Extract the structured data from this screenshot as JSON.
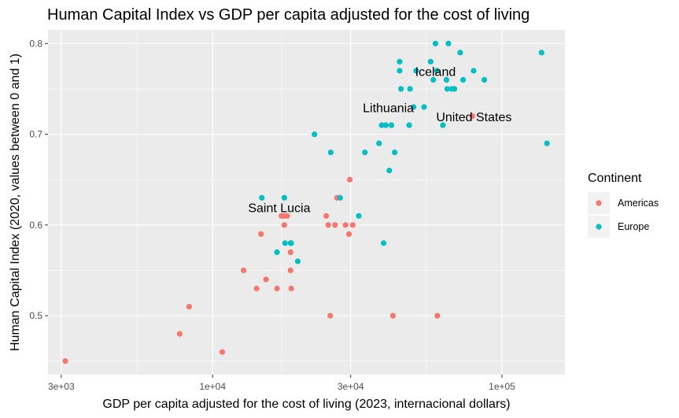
{
  "chart_data": {
    "type": "scatter",
    "title": "Human Capital Index vs GDP per capita adjusted for the cost of living",
    "xlabel": "GDP per capita adjusted for the cost of living (2023, internacional dollars)",
    "ylabel": "Human Capital Index (2020, values between 0 and 1)",
    "x_scale": "log10",
    "xlim": [
      2700,
      165000
    ],
    "ylim": [
      0.435,
      0.815
    ],
    "x_ticks": [
      3000,
      10000,
      30000,
      100000
    ],
    "x_tick_labels": [
      "3e+03",
      "1e+04",
      "3e+04",
      "1e+05"
    ],
    "y_ticks": [
      0.5,
      0.6,
      0.7,
      0.8
    ],
    "y_tick_labels": [
      "0.5",
      "0.6",
      "0.7",
      "0.8"
    ],
    "grid": true,
    "legend": {
      "title": "Continent",
      "placement": "right"
    },
    "series": [
      {
        "name": "Americas",
        "color": "#f8766d",
        "points": [
          [
            3100,
            0.45
          ],
          [
            7700,
            0.48
          ],
          [
            8300,
            0.51
          ],
          [
            10800,
            0.46
          ],
          [
            12800,
            0.55
          ],
          [
            14200,
            0.53
          ],
          [
            15300,
            0.54
          ],
          [
            16700,
            0.53
          ],
          [
            18700,
            0.53
          ],
          [
            14700,
            0.59
          ],
          [
            17300,
            0.61
          ],
          [
            17600,
            0.61
          ],
          [
            17700,
            0.6
          ],
          [
            18100,
            0.61
          ],
          [
            18600,
            0.57
          ],
          [
            18600,
            0.55
          ],
          [
            24700,
            0.61
          ],
          [
            25100,
            0.6
          ],
          [
            25500,
            0.5
          ],
          [
            26500,
            0.6
          ],
          [
            26900,
            0.63
          ],
          [
            28800,
            0.6
          ],
          [
            29600,
            0.59
          ],
          [
            29800,
            0.65
          ],
          [
            30500,
            0.6
          ],
          [
            42000,
            0.5
          ],
          [
            59800,
            0.5
          ],
          [
            79000,
            0.72
          ]
        ]
      },
      {
        "name": "Europe",
        "color": "#00bfc4",
        "points": [
          [
            14800,
            0.63
          ],
          [
            16700,
            0.57
          ],
          [
            17700,
            0.63
          ],
          [
            17800,
            0.58
          ],
          [
            18700,
            0.58
          ],
          [
            19700,
            0.56
          ],
          [
            18600,
            0.58
          ],
          [
            22500,
            0.7
          ],
          [
            25600,
            0.68
          ],
          [
            27600,
            0.63
          ],
          [
            32000,
            0.61
          ],
          [
            33600,
            0.68
          ],
          [
            37600,
            0.69
          ],
          [
            38400,
            0.71
          ],
          [
            39700,
            0.71
          ],
          [
            40800,
            0.66
          ],
          [
            41500,
            0.71
          ],
          [
            42600,
            0.68
          ],
          [
            39000,
            0.58
          ],
          [
            44300,
            0.78
          ],
          [
            44300,
            0.77
          ],
          [
            44800,
            0.75
          ],
          [
            47800,
            0.71
          ],
          [
            48100,
            0.75
          ],
          [
            49500,
            0.73
          ],
          [
            50500,
            0.77
          ],
          [
            53800,
            0.73
          ],
          [
            56700,
            0.78
          ],
          [
            57900,
            0.76
          ],
          [
            58900,
            0.8
          ],
          [
            59600,
            0.77
          ],
          [
            62500,
            0.71
          ],
          [
            64300,
            0.76
          ],
          [
            64700,
            0.75
          ],
          [
            65300,
            0.8
          ],
          [
            67100,
            0.75
          ],
          [
            68500,
            0.75
          ],
          [
            71700,
            0.79
          ],
          [
            73400,
            0.76
          ],
          [
            79800,
            0.77
          ],
          [
            86900,
            0.76
          ],
          [
            137000,
            0.79
          ],
          [
            143000,
            0.69
          ]
        ]
      }
    ],
    "annotations": [
      {
        "text": "Saint Lucia",
        "x": 17000,
        "y": 0.61
      },
      {
        "text": "Lithuania",
        "x": 40500,
        "y": 0.72
      },
      {
        "text": "United States",
        "x": 80000,
        "y": 0.71
      },
      {
        "text": "Iceland",
        "x": 58900,
        "y": 0.76
      }
    ]
  }
}
